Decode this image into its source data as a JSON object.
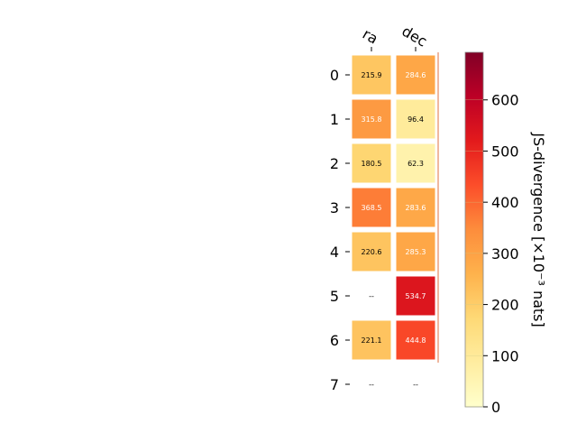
{
  "chart_data": {
    "type": "heatmap",
    "columns": [
      "ra",
      "dec"
    ],
    "rows": [
      "0",
      "1",
      "2",
      "3",
      "4",
      "5",
      "6",
      "7"
    ],
    "values": [
      [
        215.9,
        284.6
      ],
      [
        315.8,
        96.4
      ],
      [
        180.5,
        62.3
      ],
      [
        368.5,
        283.6
      ],
      [
        220.6,
        285.3
      ],
      [
        null,
        534.7
      ],
      [
        221.1,
        444.8
      ],
      [
        null,
        null
      ]
    ],
    "missing_label": "--",
    "colorbar": {
      "label": "JS-divergence [×10⁻³ nats]",
      "vmin": 0,
      "vmax": 693,
      "ticks": [
        0,
        100,
        200,
        300,
        400,
        500,
        600
      ],
      "colormap": "YlOrRd"
    },
    "colors": {
      "cell_border": "#ffffff",
      "text_dark": "#000000",
      "text_light": "#ffffff"
    }
  }
}
